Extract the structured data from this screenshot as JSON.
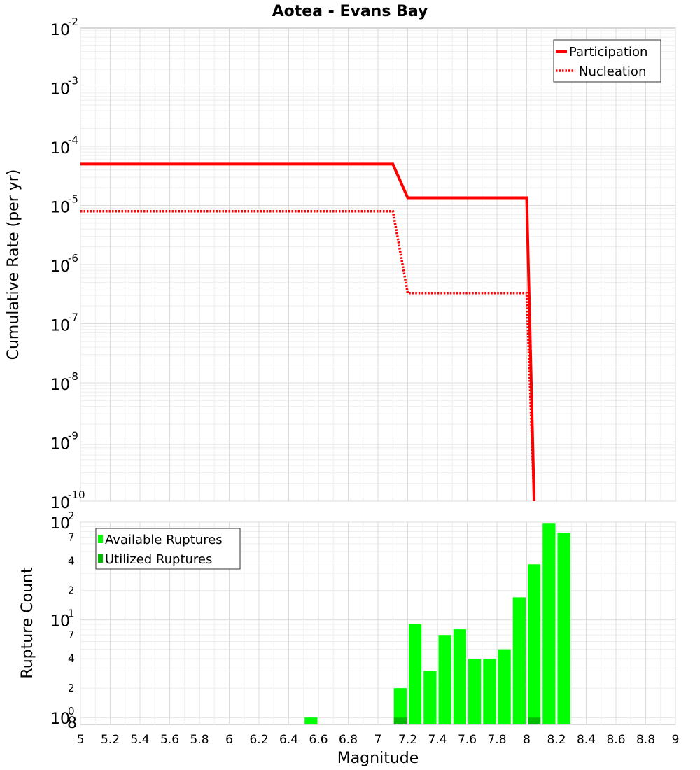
{
  "chart_data": [
    {
      "type": "line",
      "title": "Aotea - Evans Bay",
      "xlabel": "",
      "ylabel": "Cumulative Rate (per yr)",
      "xlim": [
        5,
        9
      ],
      "ylim": [
        1e-10,
        0.01
      ],
      "yscale": "log",
      "y_tick_labels": [
        {
          "value": 0.01,
          "base": "10",
          "exp": "-2"
        },
        {
          "value": 0.001,
          "base": "10",
          "exp": "-3"
        },
        {
          "value": 0.0001,
          "base": "10",
          "exp": "-4"
        },
        {
          "value": 1e-05,
          "base": "10",
          "exp": "-5"
        },
        {
          "value": 1e-06,
          "base": "10",
          "exp": "-6"
        },
        {
          "value": 1e-07,
          "base": "10",
          "exp": "-7"
        },
        {
          "value": 1e-08,
          "base": "10",
          "exp": "-8"
        },
        {
          "value": 1e-09,
          "base": "10",
          "exp": "-9"
        },
        {
          "value": 1e-10,
          "base": "10",
          "exp": "-10"
        }
      ],
      "grid": true,
      "legend_position": "top-right",
      "series": [
        {
          "name": "Participation",
          "color": "#ff0000",
          "style": "solid",
          "x": [
            5.0,
            7.1,
            7.2,
            8.0,
            8.05
          ],
          "y": [
            5e-05,
            5e-05,
            1.35e-05,
            1.35e-05,
            1e-10
          ]
        },
        {
          "name": "Nucleation",
          "color": "#ff0000",
          "style": "dotted",
          "x": [
            5.0,
            7.1,
            7.2,
            8.0,
            8.05
          ],
          "y": [
            8e-06,
            8e-06,
            3.3e-07,
            3.3e-07,
            1e-10
          ]
        }
      ]
    },
    {
      "type": "bar",
      "title": "",
      "xlabel": "Magnitude",
      "ylabel": "Rupture Count",
      "xlim": [
        5,
        9
      ],
      "ylim": [
        0.85,
        100
      ],
      "yscale": "log",
      "x_ticks": [
        "5",
        "5.2",
        "5.4",
        "5.6",
        "5.8",
        "6",
        "6.2",
        "6.4",
        "6.6",
        "6.8",
        "7",
        "7.2",
        "7.4",
        "7.6",
        "7.8",
        "8",
        "8.2",
        "8.4",
        "8.6",
        "8.8",
        "9"
      ],
      "y_tick_labels": [
        {
          "value": 100,
          "base": "10",
          "exp": "2"
        },
        {
          "value": 70,
          "label": "7"
        },
        {
          "value": 40,
          "label": "4"
        },
        {
          "value": 20,
          "label": "2"
        },
        {
          "value": 10,
          "base": "10",
          "exp": "1"
        },
        {
          "value": 7,
          "label": "7"
        },
        {
          "value": 4,
          "label": "4"
        },
        {
          "value": 2,
          "label": "2"
        },
        {
          "value": 1,
          "base": "10",
          "exp": "0"
        },
        {
          "value": 0.85,
          "label": "8"
        }
      ],
      "grid": true,
      "legend_position": "top-left",
      "bin_width": 0.1,
      "series": [
        {
          "name": "Available Ruptures",
          "color": "#00ff00",
          "bin_centers": [
            6.55,
            7.15,
            7.25,
            7.35,
            7.45,
            7.55,
            7.65,
            7.75,
            7.85,
            7.95,
            8.05,
            8.15,
            8.25
          ],
          "values": [
            1,
            2,
            9,
            3,
            7,
            8,
            4,
            4,
            5,
            17,
            37,
            98,
            78
          ]
        },
        {
          "name": "Utilized Ruptures",
          "color": "#00bb00",
          "bin_centers": [
            7.15,
            8.05
          ],
          "values": [
            1,
            1
          ]
        }
      ]
    }
  ]
}
